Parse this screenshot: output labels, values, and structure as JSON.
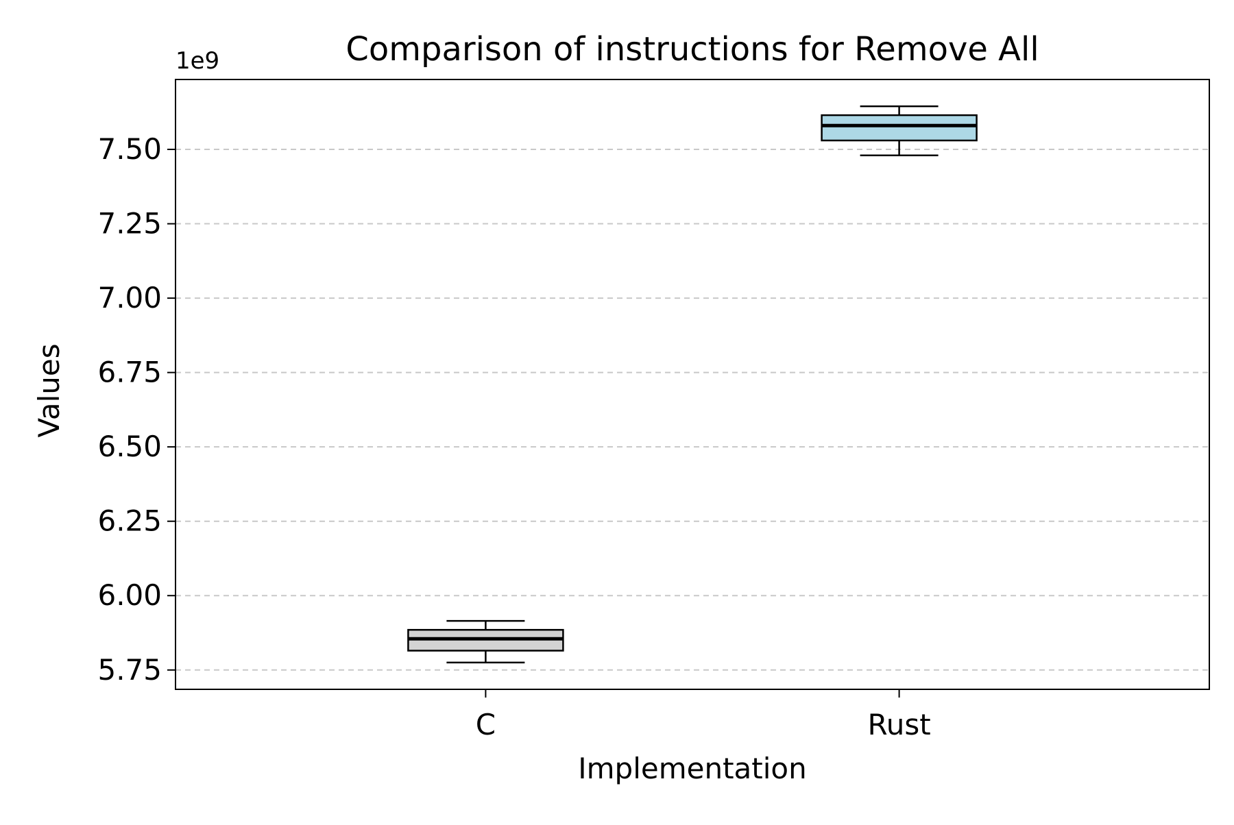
{
  "chart_data": {
    "type": "box",
    "title": "Comparison of instructions for Remove All",
    "xlabel": "Implementation",
    "ylabel": "Values",
    "offset_text": "1e9",
    "scale": 1000000000,
    "categories": [
      "C",
      "Rust"
    ],
    "boxes": [
      {
        "name": "C",
        "whislo": 5.775,
        "q1": 5.815,
        "med": 5.855,
        "q3": 5.885,
        "whishi": 5.915,
        "fill": "#d3d3d3"
      },
      {
        "name": "Rust",
        "whislo": 7.48,
        "q1": 7.53,
        "med": 7.58,
        "q3": 7.615,
        "whishi": 7.645,
        "fill": "#add8e6"
      }
    ],
    "ylim": [
      5.685,
      7.735
    ],
    "yticks": [
      5.75,
      6.0,
      6.25,
      6.5,
      6.75,
      7.0,
      7.25,
      7.5
    ],
    "ytick_labels": [
      "5.75",
      "6.00",
      "6.25",
      "6.50",
      "6.75",
      "7.00",
      "7.25",
      "7.50"
    ],
    "grid": {
      "axis": "y",
      "style": "dashed",
      "color": "#c8c8c8"
    },
    "legend": "none"
  }
}
